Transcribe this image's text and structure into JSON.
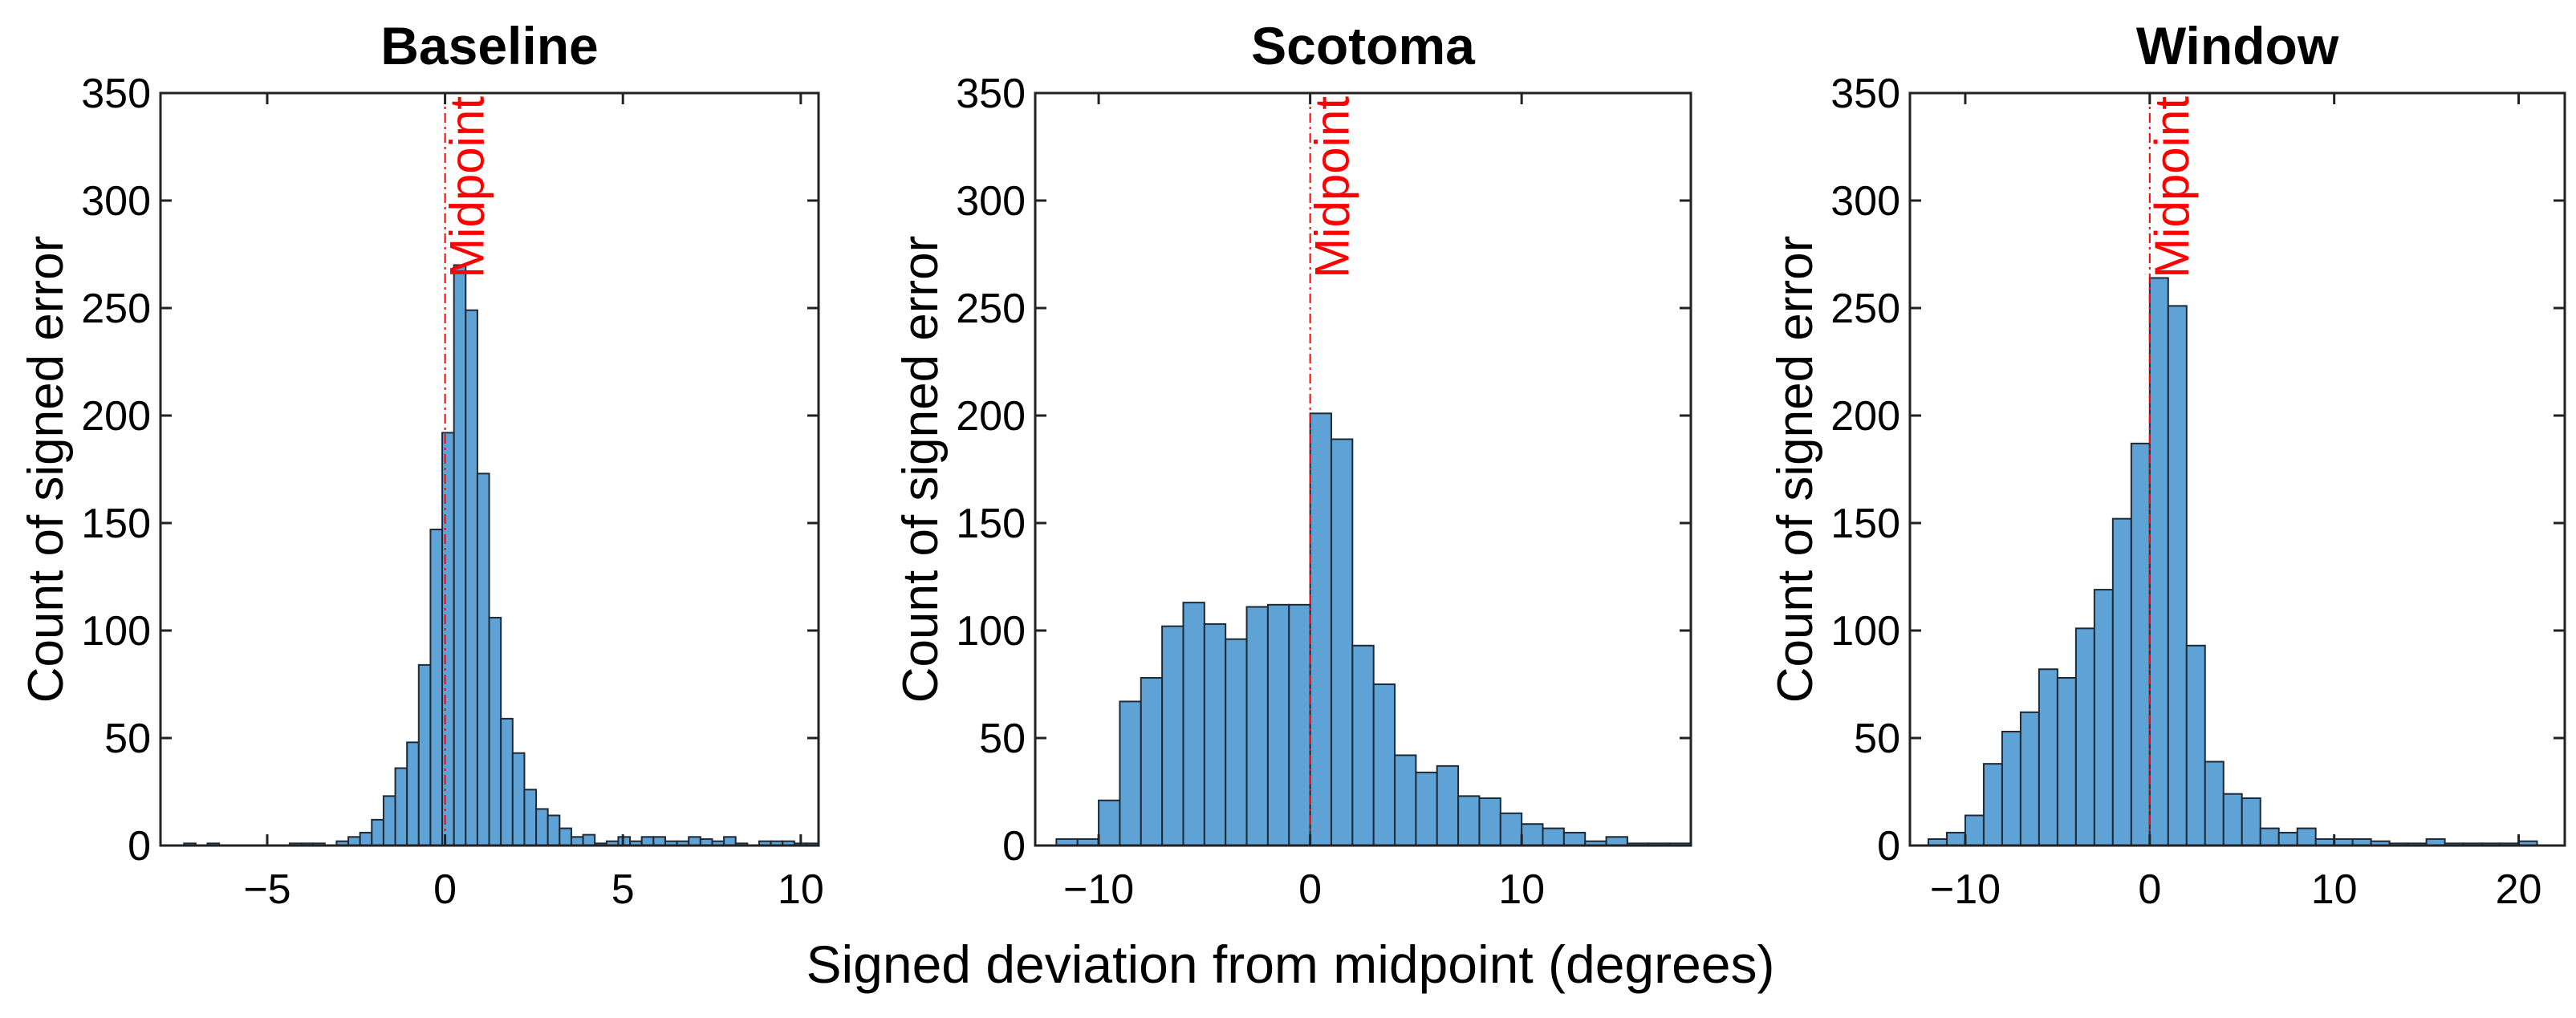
{
  "figure": {
    "xlabel": "Signed deviation from midpoint (degrees)"
  },
  "colors": {
    "bar_fill": "#5fa3d6",
    "bar_edge": "#1d2a36",
    "midpoint_line": "#ff0000"
  },
  "chart_data": [
    {
      "type": "bar",
      "title": "Baseline",
      "ylabel": "Count of signed error",
      "ylim": [
        0,
        350
      ],
      "yticks": [
        0,
        50,
        100,
        150,
        200,
        250,
        300,
        350
      ],
      "xlim": [
        -8,
        10.5
      ],
      "xticks": [
        -5,
        0,
        5,
        10
      ],
      "xtick_labels": [
        "−5",
        "0",
        "5",
        "10"
      ],
      "midpoint_x": 0,
      "midpoint_label": "Midpoint",
      "bin_start": -8.0,
      "bin_width": 0.33,
      "values": [
        0,
        0,
        1,
        0,
        1,
        0,
        0,
        0,
        0,
        0,
        0,
        1,
        1,
        1,
        0,
        2,
        4,
        6,
        12,
        23,
        36,
        48,
        84,
        147,
        192,
        270,
        249,
        173,
        106,
        59,
        43,
        26,
        17,
        14,
        8,
        4,
        5,
        1,
        2,
        4,
        2,
        4,
        4,
        2,
        2,
        4,
        3,
        2,
        4,
        1,
        0,
        2,
        2,
        2,
        1,
        1
      ]
    },
    {
      "type": "bar",
      "title": "Scotoma",
      "ylabel": "Count of signed error",
      "ylim": [
        0,
        350
      ],
      "yticks": [
        0,
        50,
        100,
        150,
        200,
        250,
        300,
        350
      ],
      "xlim": [
        -13,
        18
      ],
      "xticks": [
        -10,
        0,
        10
      ],
      "xtick_labels": [
        "−10",
        "0",
        "10"
      ],
      "midpoint_x": 0,
      "midpoint_label": "Midpoint",
      "bin_start": -12.0,
      "bin_width": 1.0,
      "values": [
        3,
        3,
        21,
        67,
        78,
        102,
        113,
        103,
        96,
        111,
        112,
        112,
        201,
        189,
        93,
        75,
        42,
        34,
        37,
        23,
        22,
        15,
        10,
        8,
        6,
        2,
        4,
        1,
        1,
        1
      ]
    },
    {
      "type": "bar",
      "title": "Window",
      "ylabel": "Count of signed error",
      "ylim": [
        0,
        350
      ],
      "yticks": [
        0,
        50,
        100,
        150,
        200,
        250,
        300,
        350
      ],
      "xlim": [
        -13,
        22.5
      ],
      "xticks": [
        -10,
        0,
        10,
        20
      ],
      "xtick_labels": [
        "−10",
        "0",
        "10",
        "20"
      ],
      "midpoint_x": 0,
      "midpoint_label": "Midpoint",
      "bin_start": -12.0,
      "bin_width": 1.0,
      "values": [
        3,
        6,
        14,
        38,
        53,
        62,
        82,
        78,
        101,
        119,
        152,
        187,
        264,
        251,
        93,
        39,
        24,
        22,
        8,
        6,
        8,
        3,
        3,
        3,
        2,
        1,
        1,
        3,
        1,
        1,
        1,
        1,
        2
      ]
    }
  ]
}
